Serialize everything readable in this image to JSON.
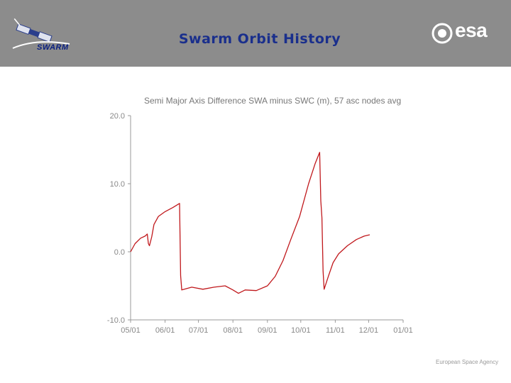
{
  "header": {
    "title": "Swarm Orbit History",
    "mission_logo_text": "SWARM",
    "agency_logo_text": "esa",
    "background_color": "#8c8c8c",
    "title_color": "#1a2f8c"
  },
  "footer": {
    "agency_name": "European Space Agency"
  },
  "chart_data": {
    "type": "line",
    "title": "Semi Major Axis Difference SWA minus SWC (m), 57 asc nodes avg",
    "xlabel": "",
    "ylabel": "",
    "x_type": "date",
    "xlim": [
      "2014-05-01",
      "2015-01-01"
    ],
    "ylim": [
      -10,
      20
    ],
    "y_ticks": [
      -10,
      0,
      10,
      20
    ],
    "y_tick_labels": [
      "-10.0",
      "0.0",
      "10.0",
      "20.0"
    ],
    "x_ticks": [
      "2014-05-01",
      "2014-06-01",
      "2014-07-01",
      "2014-08-01",
      "2014-09-01",
      "2014-10-01",
      "2014-11-01",
      "2014-12-01",
      "2015-01-01"
    ],
    "x_tick_labels": [
      "05/01",
      "06/01",
      "07/01",
      "08/01",
      "09/01",
      "10/01",
      "11/01",
      "12/01",
      "01/01"
    ],
    "grid": false,
    "line_color": "#c0181c",
    "series": [
      {
        "values": [
          [
            "2014-05-01",
            0.0
          ],
          [
            "2014-05-05",
            1.2
          ],
          [
            "2014-05-10",
            2.0
          ],
          [
            "2014-05-14",
            2.3
          ],
          [
            "2014-05-16",
            2.6
          ],
          [
            "2014-05-17",
            1.2
          ],
          [
            "2014-05-18",
            0.9
          ],
          [
            "2014-05-20",
            2.2
          ],
          [
            "2014-05-22",
            4.0
          ],
          [
            "2014-05-26",
            5.2
          ],
          [
            "2014-06-01",
            5.9
          ],
          [
            "2014-06-08",
            6.5
          ],
          [
            "2014-06-14",
            7.1
          ],
          [
            "2014-06-15",
            -3.5
          ],
          [
            "2014-06-16",
            -5.6
          ],
          [
            "2014-06-25",
            -5.2
          ],
          [
            "2014-07-05",
            -5.5
          ],
          [
            "2014-07-15",
            -5.2
          ],
          [
            "2014-07-25",
            -5.0
          ],
          [
            "2014-08-01",
            -5.6
          ],
          [
            "2014-08-06",
            -6.1
          ],
          [
            "2014-08-12",
            -5.6
          ],
          [
            "2014-08-22",
            -5.7
          ],
          [
            "2014-09-01",
            -5.0
          ],
          [
            "2014-09-08",
            -3.6
          ],
          [
            "2014-09-15",
            -1.3
          ],
          [
            "2014-09-22",
            1.8
          ],
          [
            "2014-09-30",
            5.2
          ],
          [
            "2014-10-08",
            10.0
          ],
          [
            "2014-10-14",
            13.0
          ],
          [
            "2014-10-18",
            14.6
          ],
          [
            "2014-10-19",
            7.5
          ],
          [
            "2014-10-20",
            5.0
          ],
          [
            "2014-10-21",
            -2.8
          ],
          [
            "2014-10-22",
            -5.5
          ],
          [
            "2014-10-26",
            -3.5
          ],
          [
            "2014-10-30",
            -1.6
          ],
          [
            "2014-11-04",
            -0.3
          ],
          [
            "2014-11-12",
            0.9
          ],
          [
            "2014-11-20",
            1.8
          ],
          [
            "2014-11-27",
            2.3
          ],
          [
            "2014-12-02",
            2.5
          ]
        ]
      }
    ]
  }
}
